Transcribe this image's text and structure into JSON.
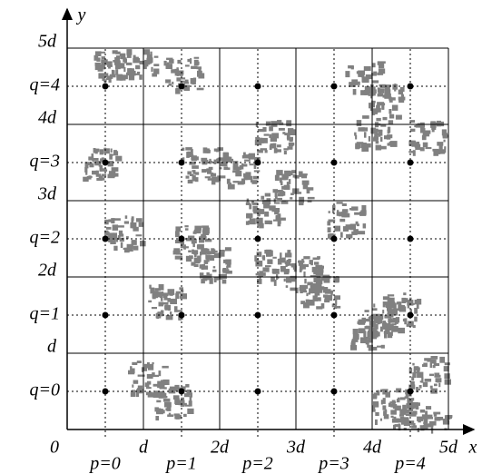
{
  "axes": {
    "x_label": "x",
    "y_label": "y",
    "origin": "0"
  },
  "x_ticks": [
    "d",
    "2d",
    "3d",
    "4d",
    "5d"
  ],
  "y_ticks": [
    "d",
    "2d",
    "3d",
    "4d",
    "5d"
  ],
  "columns": [
    "p=0",
    "p=1",
    "p=2",
    "p=3",
    "p=4"
  ],
  "rows": [
    "q=0",
    "q=1",
    "q=2",
    "q=3",
    "q=4"
  ]
}
